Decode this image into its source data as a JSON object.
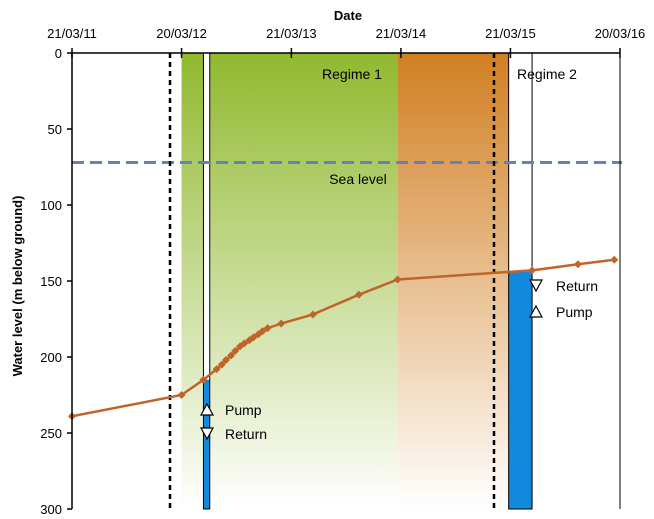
{
  "chart_data": {
    "type": "line",
    "xlabel": "Date",
    "ylabel": "Water level (m below ground)",
    "x_ticks": [
      "21/03/11",
      "20/03/12",
      "21/03/13",
      "21/03/14",
      "21/03/15",
      "20/03/16"
    ],
    "ylim": [
      0,
      300
    ],
    "y_ticks": [
      "0",
      "50",
      "100",
      "150",
      "200",
      "250",
      "300"
    ],
    "y_inverted": true,
    "grid": false,
    "series": [
      {
        "color": "#c0652a",
        "x": [
          "2011-03-21",
          "2012-03-20",
          "2012-06-01",
          "2012-07-15",
          "2012-08-01",
          "2012-08-15",
          "2012-09-01",
          "2012-09-15",
          "2012-10-01",
          "2012-10-15",
          "2012-11-01",
          "2012-11-15",
          "2012-12-01",
          "2012-12-15",
          "2013-01-01",
          "2013-02-15",
          "2013-06-01",
          "2013-11-01",
          "2014-03-10",
          "2015-06-01",
          "2015-11-01",
          "2016-03-01"
        ],
        "values": [
          239,
          225,
          215,
          208,
          205,
          202,
          199,
          196,
          193,
          191,
          189,
          187,
          185,
          183,
          181,
          178,
          172,
          159,
          149,
          143,
          139,
          136
        ]
      }
    ],
    "annotations": {
      "regime1": "Regime 1",
      "regime2": "Regime 2",
      "sea_level": "Sea level",
      "pump1": "Pump",
      "return1": "Return",
      "return2": "Return",
      "pump2": "Pump"
    },
    "regions": {
      "regime1": {
        "x_from": "2012-03-20",
        "x_to": "2014-03-10",
        "colors": [
          "#91b92f",
          "#ffffff"
        ]
      },
      "regime2": {
        "x_from": "2014-03-10",
        "x_to": "2015-06-01",
        "colors": [
          "#d17f22",
          "#ffffff"
        ]
      },
      "gap": {
        "x_from": "2012-06-01",
        "x_to": "2012-06-22"
      },
      "gap2": {
        "x_from": "2015-03-15",
        "x_to": "2015-06-01"
      },
      "sea_level_y": 72,
      "divider_dates": [
        "2012-03-20",
        "2015-03-20"
      ]
    },
    "pump_bars": [
      {
        "x_from": "2012-06-01",
        "x_to": "2012-06-22",
        "top": 215,
        "color": "#1289dc"
      },
      {
        "x_from": "2015-03-15",
        "x_to": "2015-06-01",
        "top": 144,
        "color": "#1289dc"
      }
    ],
    "colors": {
      "sea_level": "#6880b8",
      "line": "#c0652a",
      "pump": "#1289dc"
    }
  }
}
